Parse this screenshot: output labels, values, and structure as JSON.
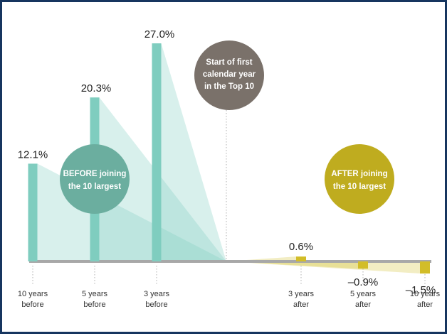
{
  "chart_data": {
    "type": "bar",
    "title": "",
    "xlabel": "",
    "ylabel": "",
    "ylim": [
      -1.5,
      27.0
    ],
    "grid": false,
    "legend": "none",
    "categories": [
      "10 years before",
      "5 years before",
      "3 years before",
      "3 years after",
      "5 years after",
      "10 years after"
    ],
    "tick_labels": [
      [
        "10 years",
        "before"
      ],
      [
        "5 years",
        "before"
      ],
      [
        "3 years",
        "before"
      ],
      [
        "3 years",
        "after"
      ],
      [
        "5 years",
        "after"
      ],
      [
        "10 years",
        "after"
      ]
    ],
    "values": [
      12.1,
      20.3,
      27.0,
      0.6,
      -0.9,
      -1.5
    ],
    "value_labels": [
      "12.1%",
      "20.3%",
      "27.0%",
      "0.6%",
      "–0.9%",
      "–1.5%"
    ],
    "annotations": {
      "center": [
        "Start of first",
        "calendar year",
        "in the Top 10"
      ],
      "before": [
        "BEFORE joining",
        "the 10 largest"
      ],
      "after": [
        "AFTER joining",
        "the 10 largest"
      ]
    },
    "colors": {
      "before": "#7fcdbf",
      "after": "#d2bd28",
      "center": "#7a716a",
      "before_circle": "#6bae9f",
      "after_circle": "#bfac1f",
      "axis": "#a8a8a8",
      "border": "#16355f"
    }
  }
}
